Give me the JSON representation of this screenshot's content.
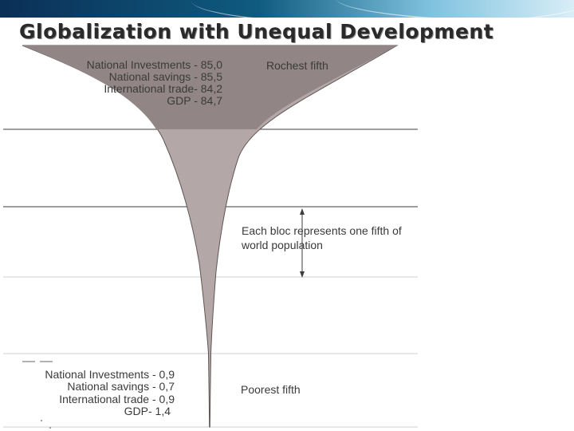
{
  "title": "Globalization with Unequal Development",
  "colors": {
    "top_bloc": "#918685",
    "funnel": "#b3a8a7",
    "outline": "#5f5555",
    "lines": "#3c3c3c",
    "text": "#3a3a3a"
  },
  "richest": {
    "label": "Rochest fifth",
    "stats": [
      "National Investments - 85,0",
      "National savings - 85,5",
      "International trade- 84,2",
      "GDP - 84,7"
    ]
  },
  "middle_note": {
    "line1": "Each bloc represents one fifth of",
    "line2": "world population"
  },
  "poorest": {
    "label": "Poorest fifth",
    "stats": [
      "National Investments - 0,9",
      "National savings  - 0,7",
      "International trade - 0,9",
      "GDP- 1,4"
    ]
  }
}
